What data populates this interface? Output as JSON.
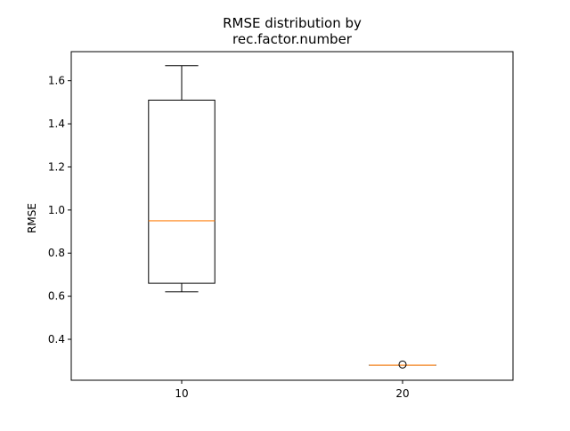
{
  "chart_data": {
    "type": "box",
    "title_lines": [
      "RMSE distribution by",
      "rec.factor.number"
    ],
    "xlabel": "",
    "ylabel": "RMSE",
    "categories": [
      "10",
      "20"
    ],
    "boxes": [
      {
        "category": "10",
        "whisker_low": 0.62,
        "q1": 0.66,
        "median": 0.95,
        "q3": 1.51,
        "whisker_high": 1.67,
        "outliers": []
      },
      {
        "category": "20",
        "whisker_low": 0.28,
        "q1": 0.28,
        "median": 0.28,
        "q3": 0.28,
        "whisker_high": 0.28,
        "outliers": [
          0.283
        ]
      }
    ],
    "ylim": [
      0.21,
      1.735
    ],
    "yticks": [
      0.4,
      0.6,
      0.8,
      1.0,
      1.2,
      1.4,
      1.6
    ],
    "ytick_labels": [
      "0.4",
      "0.6",
      "0.8",
      "1.0",
      "1.2",
      "1.4",
      "1.6"
    ],
    "grid": false,
    "colors": {
      "box": "#000000",
      "median": "#ff7f0e",
      "axes": "#000000"
    }
  }
}
